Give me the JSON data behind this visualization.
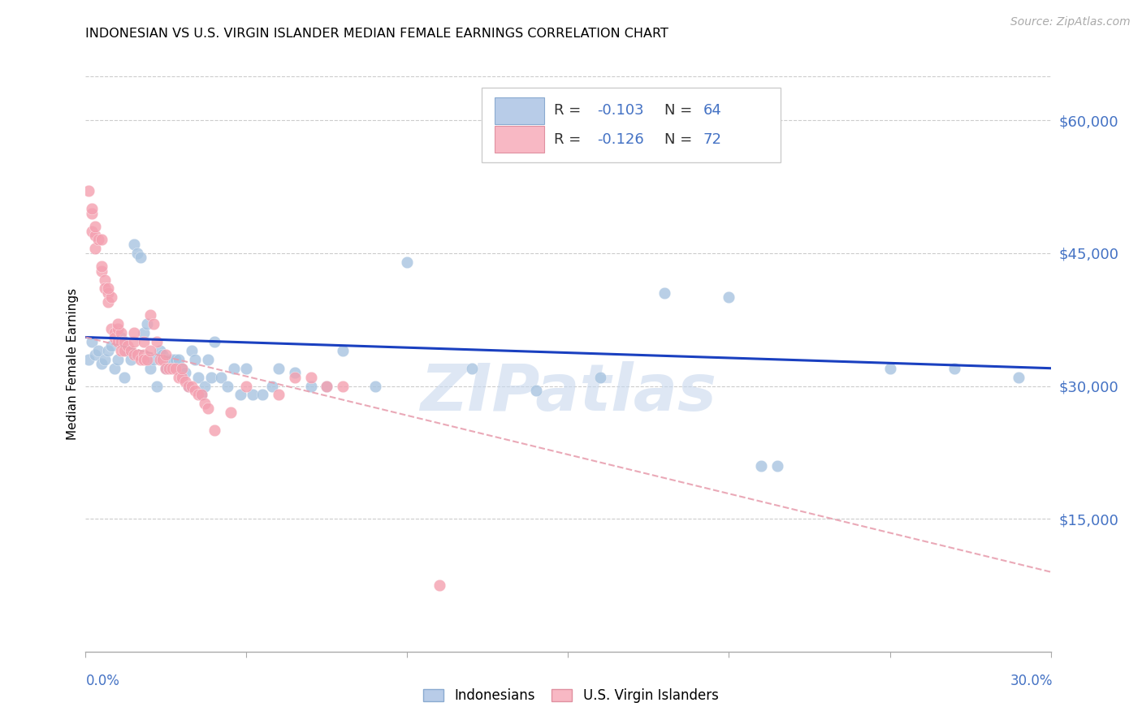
{
  "title": "INDONESIAN VS U.S. VIRGIN ISLANDER MEDIAN FEMALE EARNINGS CORRELATION CHART",
  "source": "Source: ZipAtlas.com",
  "ylabel": "Median Female Earnings",
  "xlim": [
    0.0,
    0.3
  ],
  "ylim": [
    0,
    65000
  ],
  "right_ytick_values": [
    60000,
    45000,
    30000,
    15000
  ],
  "right_ytick_labels": [
    "$60,000",
    "$45,000",
    "$30,000",
    "$15,000"
  ],
  "blue_scatter_color": "#A8C4E0",
  "pink_scatter_color": "#F4A0B0",
  "trendline_blue": "#1A40C0",
  "trendline_pink": "#E8A0B0",
  "watermark_text": "ZIPatlas",
  "watermark_color": "#C8D8EE",
  "legend_r_n_color": "#4472C4",
  "legend_label_color": "#333333",
  "blue_trend_x0": 0.0,
  "blue_trend_y0": 35500,
  "blue_trend_x1": 0.3,
  "blue_trend_y1": 32000,
  "pink_trend_x0": 0.0,
  "pink_trend_y0": 35500,
  "pink_trend_x1": 0.3,
  "pink_trend_y1": 9000,
  "blue_dots": [
    [
      0.001,
      33000
    ],
    [
      0.002,
      35000
    ],
    [
      0.003,
      33500
    ],
    [
      0.004,
      34000
    ],
    [
      0.005,
      32500
    ],
    [
      0.006,
      33000
    ],
    [
      0.007,
      34000
    ],
    [
      0.008,
      34500
    ],
    [
      0.009,
      32000
    ],
    [
      0.01,
      33000
    ],
    [
      0.011,
      35500
    ],
    [
      0.012,
      31000
    ],
    [
      0.013,
      34000
    ],
    [
      0.014,
      33000
    ],
    [
      0.015,
      46000
    ],
    [
      0.016,
      45000
    ],
    [
      0.017,
      44500
    ],
    [
      0.018,
      36000
    ],
    [
      0.019,
      37000
    ],
    [
      0.02,
      32000
    ],
    [
      0.021,
      33000
    ],
    [
      0.022,
      30000
    ],
    [
      0.023,
      34000
    ],
    [
      0.024,
      33500
    ],
    [
      0.025,
      32000
    ],
    [
      0.026,
      33000
    ],
    [
      0.027,
      33000
    ],
    [
      0.028,
      33000
    ],
    [
      0.029,
      33000
    ],
    [
      0.03,
      32000
    ],
    [
      0.031,
      31500
    ],
    [
      0.032,
      30000
    ],
    [
      0.033,
      34000
    ],
    [
      0.034,
      33000
    ],
    [
      0.035,
      31000
    ],
    [
      0.036,
      29000
    ],
    [
      0.037,
      30000
    ],
    [
      0.038,
      33000
    ],
    [
      0.039,
      31000
    ],
    [
      0.04,
      35000
    ],
    [
      0.042,
      31000
    ],
    [
      0.044,
      30000
    ],
    [
      0.046,
      32000
    ],
    [
      0.048,
      29000
    ],
    [
      0.05,
      32000
    ],
    [
      0.052,
      29000
    ],
    [
      0.055,
      29000
    ],
    [
      0.058,
      30000
    ],
    [
      0.06,
      32000
    ],
    [
      0.065,
      31500
    ],
    [
      0.07,
      30000
    ],
    [
      0.075,
      30000
    ],
    [
      0.08,
      34000
    ],
    [
      0.09,
      30000
    ],
    [
      0.1,
      44000
    ],
    [
      0.12,
      32000
    ],
    [
      0.14,
      29500
    ],
    [
      0.16,
      31000
    ],
    [
      0.18,
      40500
    ],
    [
      0.2,
      40000
    ],
    [
      0.21,
      21000
    ],
    [
      0.215,
      21000
    ],
    [
      0.25,
      32000
    ],
    [
      0.27,
      32000
    ],
    [
      0.29,
      31000
    ]
  ],
  "pink_dots": [
    [
      0.001,
      52000
    ],
    [
      0.002,
      49500
    ],
    [
      0.002,
      47500
    ],
    [
      0.003,
      47000
    ],
    [
      0.003,
      45500
    ],
    [
      0.004,
      46500
    ],
    [
      0.005,
      46500
    ],
    [
      0.005,
      43000
    ],
    [
      0.006,
      42000
    ],
    [
      0.006,
      41000
    ],
    [
      0.007,
      40500
    ],
    [
      0.007,
      39500
    ],
    [
      0.008,
      40000
    ],
    [
      0.008,
      36500
    ],
    [
      0.009,
      36000
    ],
    [
      0.009,
      35500
    ],
    [
      0.01,
      36500
    ],
    [
      0.01,
      35000
    ],
    [
      0.011,
      36000
    ],
    [
      0.011,
      35000
    ],
    [
      0.011,
      34000
    ],
    [
      0.012,
      35000
    ],
    [
      0.012,
      34000
    ],
    [
      0.013,
      34500
    ],
    [
      0.014,
      34000
    ],
    [
      0.015,
      35000
    ],
    [
      0.015,
      33500
    ],
    [
      0.016,
      33500
    ],
    [
      0.017,
      33000
    ],
    [
      0.018,
      33500
    ],
    [
      0.018,
      33000
    ],
    [
      0.019,
      33000
    ],
    [
      0.02,
      38000
    ],
    [
      0.021,
      37000
    ],
    [
      0.022,
      35000
    ],
    [
      0.023,
      33000
    ],
    [
      0.024,
      33000
    ],
    [
      0.025,
      32000
    ],
    [
      0.026,
      32000
    ],
    [
      0.027,
      32000
    ],
    [
      0.028,
      32000
    ],
    [
      0.029,
      31000
    ],
    [
      0.03,
      31000
    ],
    [
      0.031,
      30500
    ],
    [
      0.032,
      30000
    ],
    [
      0.033,
      30000
    ],
    [
      0.034,
      29500
    ],
    [
      0.035,
      29000
    ],
    [
      0.036,
      29000
    ],
    [
      0.037,
      28000
    ],
    [
      0.038,
      27500
    ],
    [
      0.04,
      25000
    ],
    [
      0.045,
      27000
    ],
    [
      0.05,
      30000
    ],
    [
      0.06,
      29000
    ],
    [
      0.065,
      31000
    ],
    [
      0.07,
      31000
    ],
    [
      0.075,
      30000
    ],
    [
      0.08,
      30000
    ],
    [
      0.002,
      50000
    ],
    [
      0.003,
      48000
    ],
    [
      0.005,
      43500
    ],
    [
      0.007,
      41000
    ],
    [
      0.01,
      37000
    ],
    [
      0.015,
      36000
    ],
    [
      0.018,
      35000
    ],
    [
      0.02,
      34000
    ],
    [
      0.025,
      33500
    ],
    [
      0.03,
      32000
    ],
    [
      0.11,
      7500
    ]
  ]
}
